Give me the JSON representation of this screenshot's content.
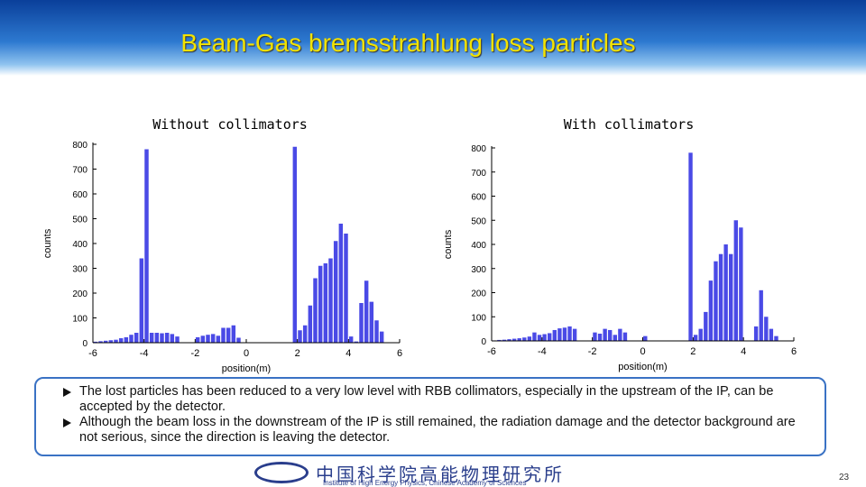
{
  "header": {
    "title": "Beam-Gas bremsstrahlung loss particles"
  },
  "chart_data": [
    {
      "type": "histogram",
      "title": "Without collimators",
      "xlabel": "position(m)",
      "ylabel": "counts",
      "color": "#4a4ae6",
      "bins": [
        -6,
        -5.8,
        -5.6,
        -5.4,
        -5.2,
        -5,
        -4.8,
        -4.6,
        -4.4,
        -4.2,
        -4,
        -3.8,
        -3.6,
        -3.4,
        -3.2,
        -3,
        -2.8,
        -2.6,
        -2.4,
        -2.2,
        -2,
        -1.8,
        -1.6,
        -1.4,
        -1.2,
        -1,
        -0.8,
        -0.6,
        -0.4,
        -0.2,
        0,
        0.2,
        0.4,
        0.6,
        0.8,
        1,
        1.2,
        1.4,
        1.6,
        1.8,
        2,
        2.2,
        2.4,
        2.6,
        2.8,
        3,
        3.2,
        3.4,
        3.6,
        3.8,
        4,
        4.2,
        4.4,
        4.6,
        4.8,
        5,
        5.2,
        5.4,
        5.6,
        5.8,
        6
      ],
      "values": [
        4,
        6,
        8,
        10,
        12,
        18,
        22,
        32,
        40,
        340,
        780,
        40,
        40,
        38,
        40,
        35,
        25,
        0,
        0,
        0,
        22,
        28,
        32,
        35,
        28,
        60,
        60,
        70,
        20,
        0,
        0,
        0,
        0,
        0,
        0,
        0,
        0,
        0,
        0,
        790,
        50,
        70,
        150,
        260,
        310,
        320,
        340,
        410,
        480,
        440,
        25,
        5,
        160,
        250,
        165,
        90,
        45,
        0,
        0,
        0
      ],
      "xlim": [
        -6,
        6
      ],
      "ylim": [
        0,
        800
      ],
      "xticks": [
        -6,
        -4,
        -2,
        0,
        2,
        4,
        6
      ],
      "yticks": [
        0,
        100,
        200,
        300,
        400,
        500,
        600,
        700,
        800
      ]
    },
    {
      "type": "histogram",
      "title": "With collimators",
      "xlabel": "position(m)",
      "ylabel": "counts",
      "color": "#4a4ae6",
      "bins": [
        -6,
        -5.8,
        -5.6,
        -5.4,
        -5.2,
        -5,
        -4.8,
        -4.6,
        -4.4,
        -4.2,
        -4,
        -3.8,
        -3.6,
        -3.4,
        -3.2,
        -3,
        -2.8,
        -2.6,
        -2.4,
        -2.2,
        -2,
        -1.8,
        -1.6,
        -1.4,
        -1.2,
        -1,
        -0.8,
        -0.6,
        -0.4,
        -0.2,
        0,
        0.2,
        0.4,
        0.6,
        0.8,
        1,
        1.2,
        1.4,
        1.6,
        1.8,
        2,
        2.2,
        2.4,
        2.6,
        2.8,
        3,
        3.2,
        3.4,
        3.6,
        3.8,
        4,
        4.2,
        4.4,
        4.6,
        4.8,
        5,
        5.2,
        5.4,
        5.6,
        5.8,
        6
      ],
      "values": [
        2,
        4,
        5,
        7,
        9,
        11,
        14,
        18,
        35,
        25,
        28,
        32,
        45,
        52,
        55,
        60,
        50,
        0,
        0,
        0,
        35,
        30,
        50,
        45,
        25,
        50,
        35,
        0,
        0,
        0,
        20,
        0,
        0,
        0,
        0,
        0,
        0,
        0,
        0,
        780,
        25,
        50,
        120,
        250,
        330,
        360,
        400,
        360,
        500,
        470,
        0,
        0,
        60,
        210,
        100,
        50,
        20,
        0,
        0,
        0
      ],
      "xlim": [
        -6,
        6
      ],
      "ylim": [
        0,
        800
      ],
      "xticks": [
        -6,
        -4,
        -2,
        0,
        2,
        4,
        6
      ],
      "yticks": [
        0,
        100,
        200,
        300,
        400,
        500,
        600,
        700,
        800
      ]
    }
  ],
  "bullets": [
    "The lost particles has been reduced to a very low level with RBB collimators, especially in the upstream of the IP, can be accepted by the detector.",
    "Although the beam loss in the downstream of the IP is still remained, the radiation damage and the detector background are not serious, since the direction is leaving the detector."
  ],
  "footer": {
    "institute_cn": "中国科学院高能物理研究所",
    "institute_en": "Institute of High Energy Physics, Chinese Academy of Sciences",
    "page_number": 23
  }
}
